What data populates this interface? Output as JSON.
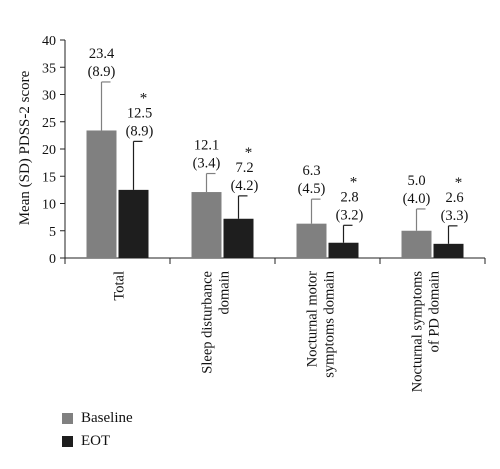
{
  "chart_data": {
    "type": "bar",
    "ylabel": "Mean (SD) PDSS-2 score",
    "ylim": [
      0,
      40
    ],
    "yticks": [
      0,
      5,
      10,
      15,
      20,
      25,
      30,
      35,
      40
    ],
    "categories": [
      [
        "Total"
      ],
      [
        "Sleep disturbance",
        "domain"
      ],
      [
        "Nocturnal motor",
        "symptoms domain"
      ],
      [
        "Nocturnal symptoms",
        "of PD domain"
      ]
    ],
    "series": [
      {
        "name": "Baseline",
        "color": "#808080",
        "values": [
          23.4,
          12.1,
          6.3,
          5.0
        ],
        "sd": [
          8.9,
          3.4,
          4.5,
          4.0
        ],
        "value_labels": [
          "23.4",
          "12.1",
          "6.3",
          "5.0"
        ],
        "sd_labels": [
          "(8.9)",
          "(3.4)",
          "(4.5)",
          "(4.0)"
        ]
      },
      {
        "name": "EOT",
        "color": "#1e1e1e",
        "values": [
          12.5,
          7.2,
          2.8,
          2.6
        ],
        "sd": [
          8.9,
          4.2,
          3.2,
          3.3
        ],
        "value_labels": [
          "12.5",
          "7.2",
          "2.8",
          "2.6"
        ],
        "sd_labels": [
          "(8.9)",
          "(4.2)",
          "(3.2)",
          "(3.3)"
        ],
        "annotation": "*"
      }
    ],
    "legend": [
      "Baseline",
      "EOT"
    ],
    "legend_position": "bottom-left",
    "grid": false
  }
}
